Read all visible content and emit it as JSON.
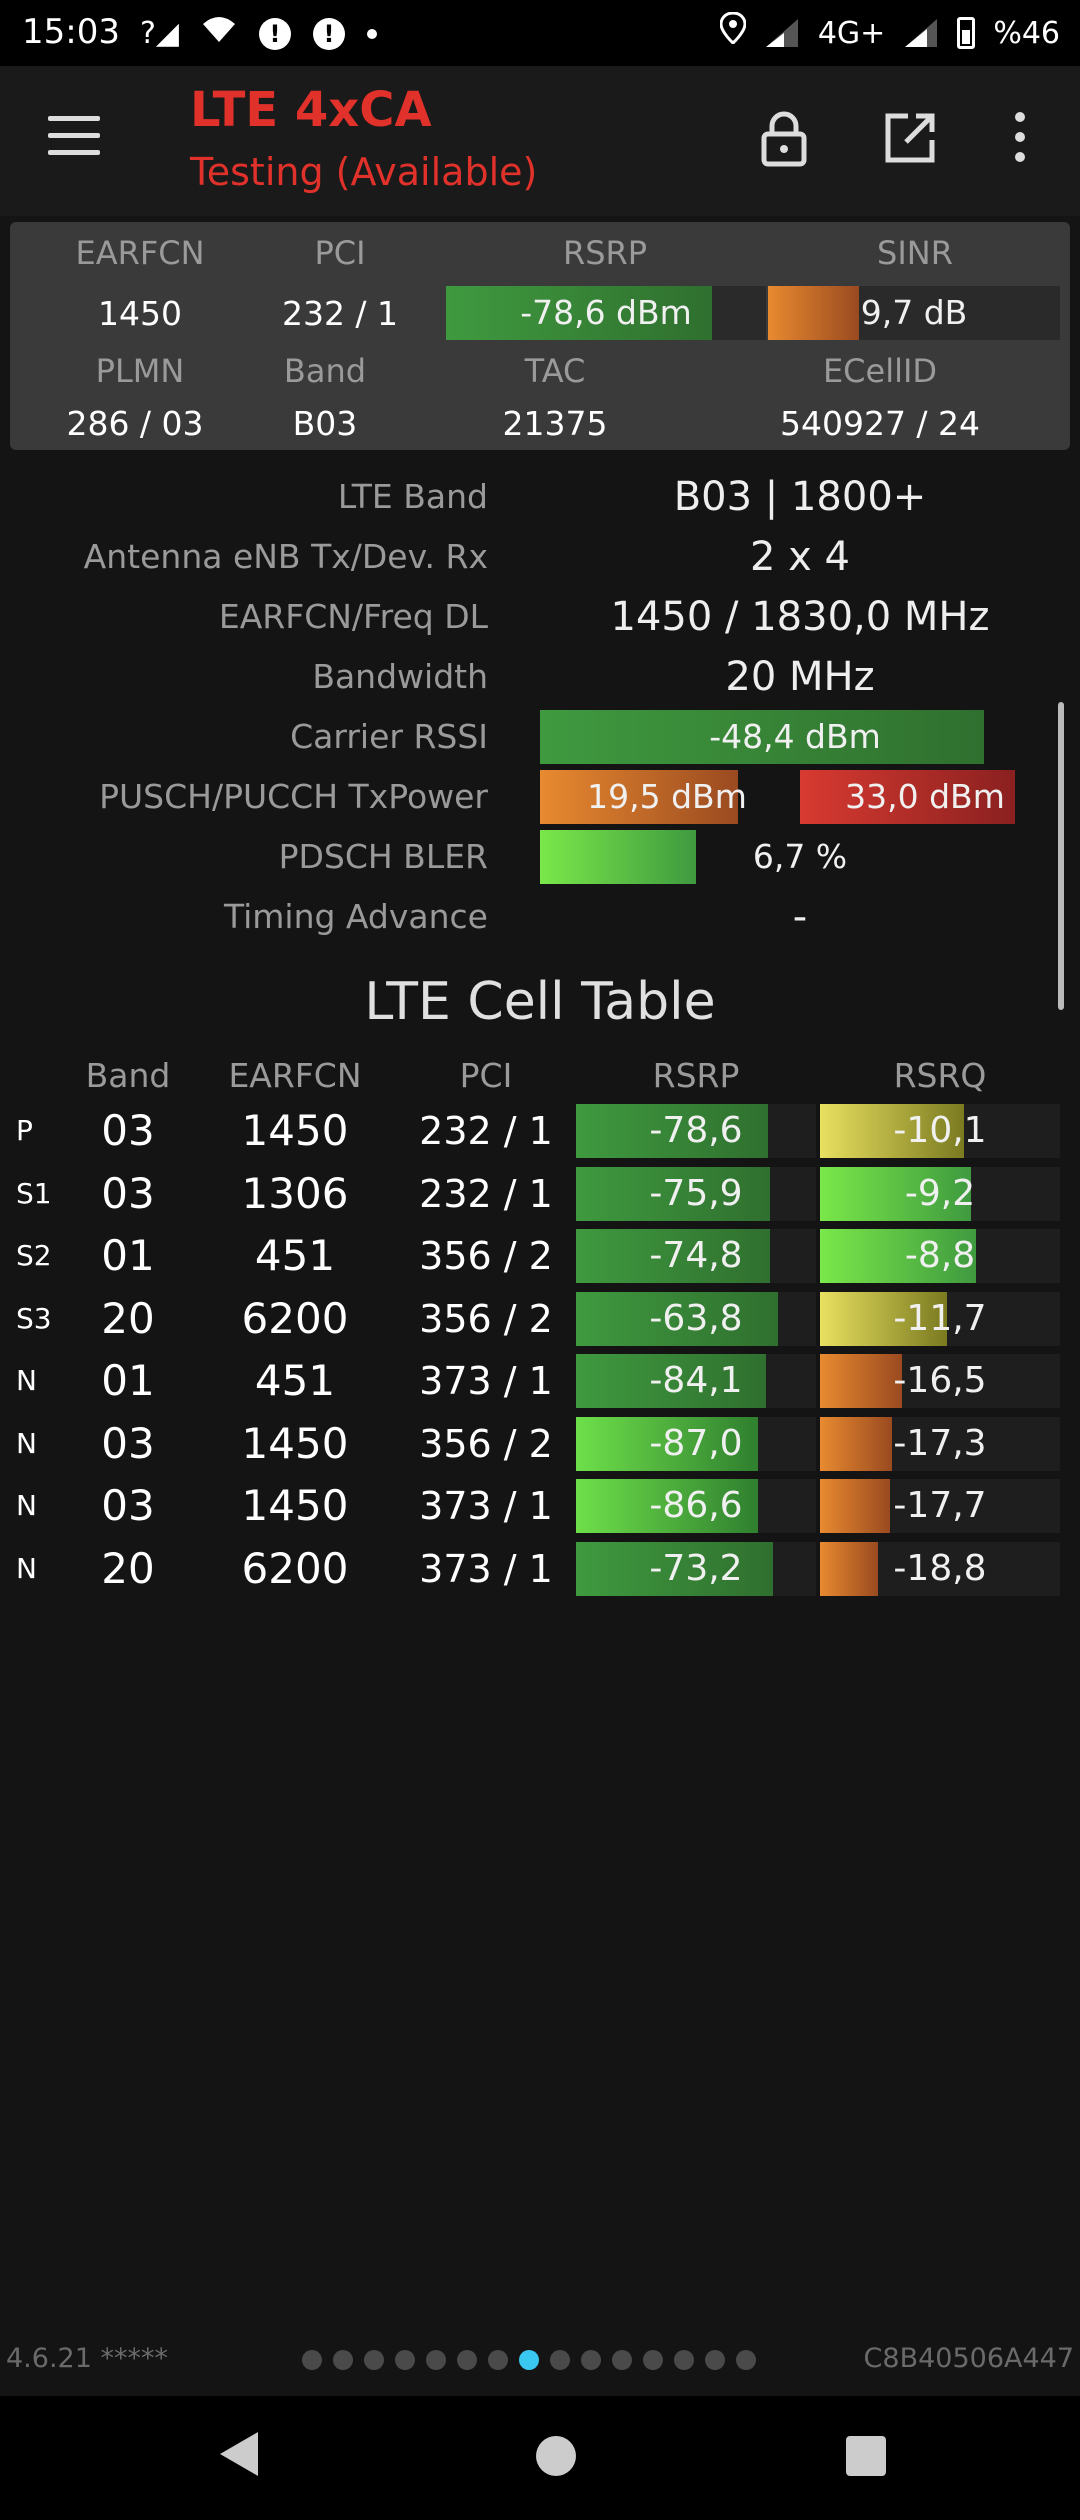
{
  "statusbar": {
    "time": "15:03",
    "network": "4G+",
    "battery": "%46",
    "icons": [
      "signal-question-icon",
      "wifi-icon",
      "alert-icon",
      "alert-icon",
      "dot-icon",
      "location-icon",
      "signal-icon",
      "signal-icon",
      "battery-icon"
    ]
  },
  "toolbar": {
    "title": "LTE 4xCA",
    "subtitle": "Testing (Available)",
    "icons": [
      "menu-icon",
      "lock-icon",
      "open-external-icon",
      "more-vert-icon"
    ]
  },
  "summary": {
    "labels": {
      "earfcn": "EARFCN",
      "pci": "PCI",
      "rsrp": "RSRP",
      "sinr": "SINR",
      "plmn": "PLMN",
      "band": "Band",
      "tac": "TAC",
      "ecellid": "ECellID"
    },
    "earfcn": "1450",
    "pci": "232 / 1",
    "rsrp": {
      "text": "-78,6 dBm",
      "level": 0.83
    },
    "sinr": {
      "text": "9,7 dB",
      "level": 0.31
    },
    "plmn": "286 / 03",
    "band": "B03",
    "tac": "21375",
    "ecellid": "540927 / 24"
  },
  "details": [
    {
      "label": "LTE Band",
      "value": "B03 | 1800+"
    },
    {
      "label": "Antenna eNB Tx/Dev. Rx",
      "value": "2 x 4"
    },
    {
      "label": "EARFCN/Freq DL",
      "value": "1450 / 1830,0 MHz"
    },
    {
      "label": "Bandwidth",
      "value": "20 MHz"
    },
    {
      "label": "Carrier RSSI",
      "bar": {
        "text": "-48,4 dBm",
        "level": 0.87
      }
    },
    {
      "label": "PUSCH/PUCCH TxPower",
      "bars": [
        {
          "text": "19,5 dBm",
          "level": 0.78
        },
        {
          "text": "33,0 dBm",
          "level": 0.86
        }
      ]
    },
    {
      "label": "PDSCH BLER",
      "bar": {
        "text": "6,7 %",
        "level": 0.3
      }
    },
    {
      "label": "Timing Advance",
      "value": "-"
    }
  ],
  "cell_table": {
    "title": "LTE Cell Table",
    "headers": [
      "Band",
      "EARFCN",
      "PCI",
      "RSRP",
      "RSRQ"
    ],
    "rows": [
      {
        "type": "P",
        "band": "03",
        "earfcn": "1450",
        "pci": "232 / 1",
        "rsrp": {
          "text": "-78,6",
          "level": 0.8
        },
        "rsrq": {
          "text": "-10,1",
          "level": 0.6
        }
      },
      {
        "type": "S1",
        "band": "03",
        "earfcn": "1306",
        "pci": "232 / 1",
        "rsrp": {
          "text": "-75,9",
          "level": 0.81
        },
        "rsrq": {
          "text": "-9,2",
          "level": 0.63
        }
      },
      {
        "type": "S2",
        "band": "01",
        "earfcn": "451",
        "pci": "356 / 2",
        "rsrp": {
          "text": "-74,8",
          "level": 0.81
        },
        "rsrq": {
          "text": "-8,8",
          "level": 0.65
        }
      },
      {
        "type": "S3",
        "band": "20",
        "earfcn": "6200",
        "pci": "356 / 2",
        "rsrp": {
          "text": "-63,8",
          "level": 0.84
        },
        "rsrq": {
          "text": "-11,7",
          "level": 0.53
        }
      },
      {
        "type": "N",
        "band": "01",
        "earfcn": "451",
        "pci": "373 / 1",
        "rsrp": {
          "text": "-84,1",
          "level": 0.79
        },
        "rsrq": {
          "text": "-16,5",
          "level": 0.34
        }
      },
      {
        "type": "N",
        "band": "03",
        "earfcn": "1450",
        "pci": "356 / 2",
        "rsrp": {
          "text": "-87,0",
          "level": 0.76
        },
        "rsrq": {
          "text": "-17,3",
          "level": 0.3
        }
      },
      {
        "type": "N",
        "band": "03",
        "earfcn": "1450",
        "pci": "373 / 1",
        "rsrp": {
          "text": "-86,6",
          "level": 0.76
        },
        "rsrq": {
          "text": "-17,7",
          "level": 0.29
        }
      },
      {
        "type": "N",
        "band": "20",
        "earfcn": "6200",
        "pci": "373 / 1",
        "rsrp": {
          "text": "-73,2",
          "level": 0.82
        },
        "rsrq": {
          "text": "-18,8",
          "level": 0.24
        }
      }
    ]
  },
  "footer": {
    "version": "4.6.21 *****",
    "device_id": "C8B40506A447",
    "pages": 15,
    "active_page": 8
  },
  "colors": {
    "accent": "#e0312a",
    "page_indicator_active": "#3ac8f0"
  }
}
